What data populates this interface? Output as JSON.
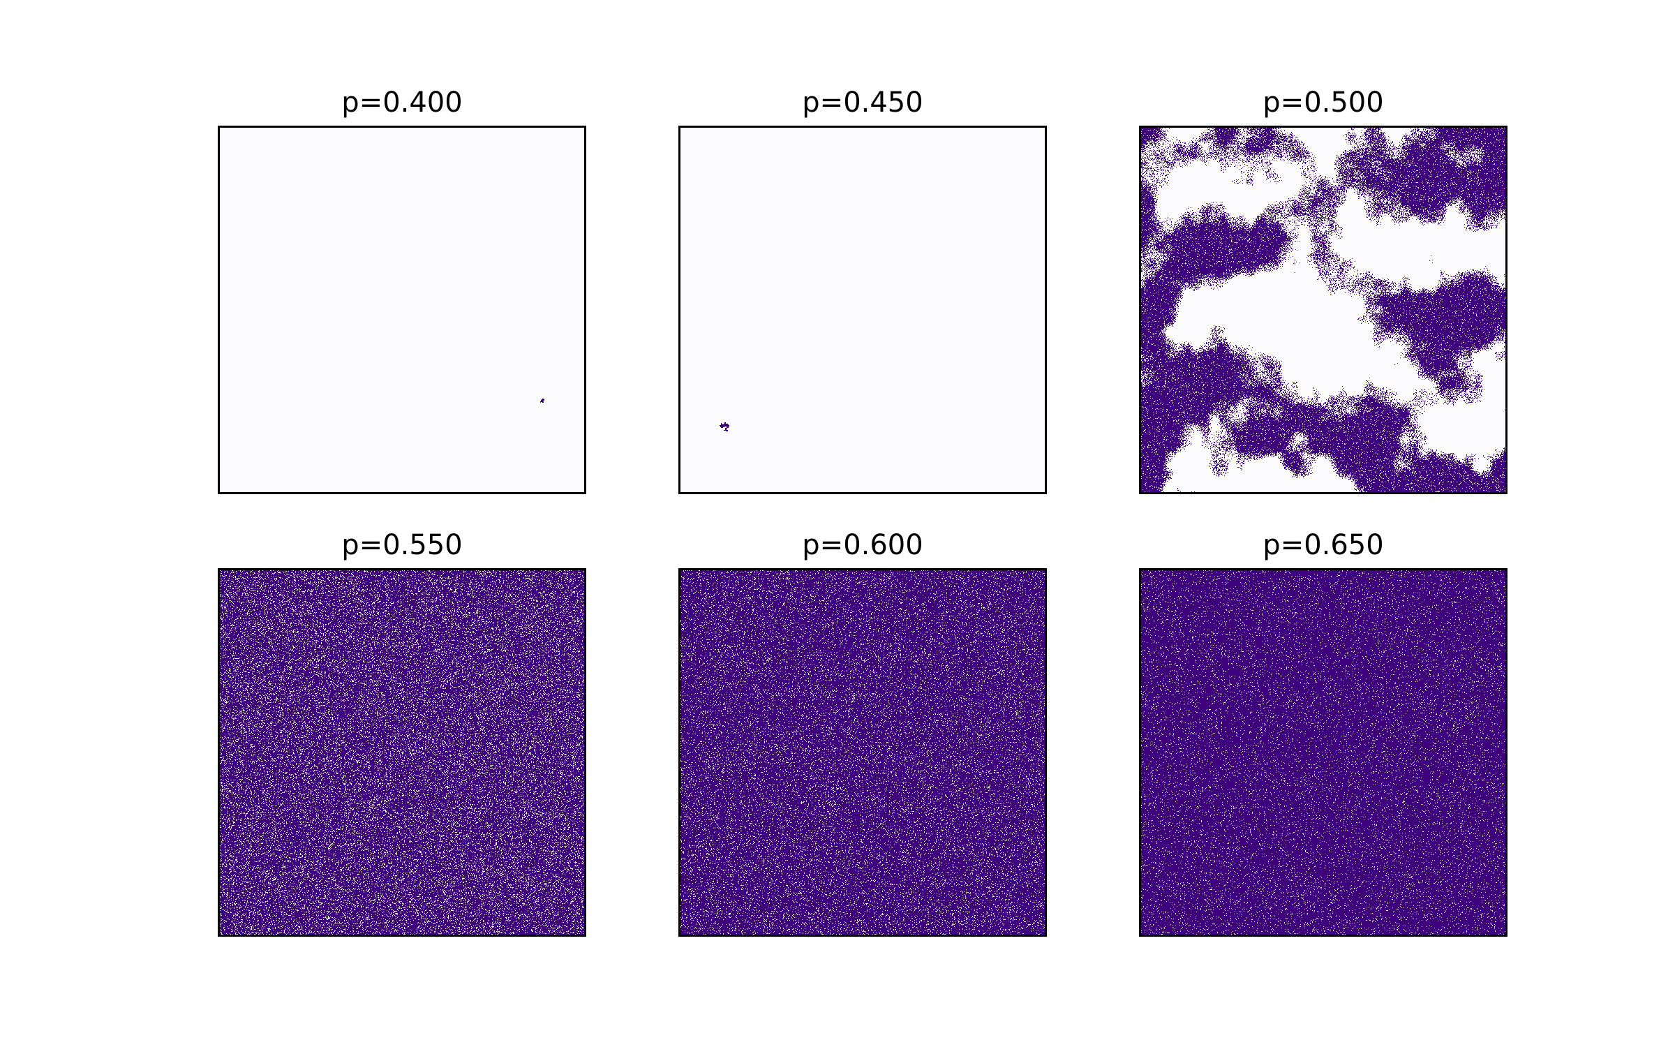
{
  "figure": {
    "background": "#ffffff"
  },
  "chart_data": {
    "type": "heatmap",
    "colormap": "Purples",
    "empty_color": "#fcfbfd",
    "occupied_color": "#3f007d",
    "grid": false,
    "axes_ticks": false,
    "panels": [
      {
        "title": "p=0.400",
        "p": 0.4,
        "pattern": "tiny_cluster",
        "cluster_center": [
          0.88,
          0.75
        ]
      },
      {
        "title": "p=0.450",
        "p": 0.45,
        "pattern": "tiny_cluster",
        "cluster_center": [
          0.13,
          0.82
        ]
      },
      {
        "title": "p=0.500",
        "p": 0.5,
        "pattern": "percolating_cluster",
        "coverage": 0.62
      },
      {
        "title": "p=0.550",
        "p": 0.55,
        "pattern": "dense",
        "filled_fraction": 0.85
      },
      {
        "title": "p=0.600",
        "p": 0.6,
        "pattern": "dense",
        "filled_fraction": 0.9
      },
      {
        "title": "p=0.650",
        "p": 0.65,
        "pattern": "dense",
        "filled_fraction": 0.94
      }
    ]
  }
}
